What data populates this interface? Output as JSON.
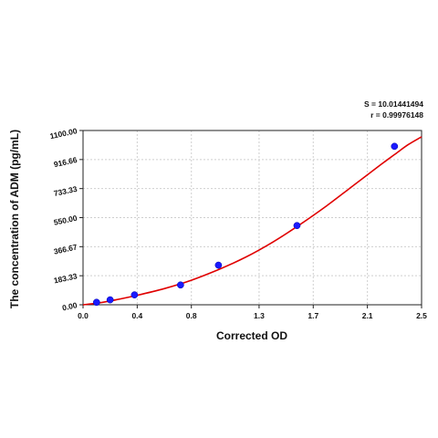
{
  "chart_data": {
    "type": "scatter",
    "title": "",
    "xlabel": "Corrected OD",
    "ylabel": "The concentration of ADM (pg/mL)",
    "xlim": [
      0,
      2.5
    ],
    "ylim": [
      0,
      1100
    ],
    "x_ticks": [
      0.0,
      0.4,
      0.8,
      1.3,
      1.7,
      2.1,
      2.5
    ],
    "x_tick_labels": [
      "0.0",
      "0.4",
      "0.8",
      "1.3",
      "1.7",
      "2.1",
      "2.5"
    ],
    "y_ticks": [
      0,
      183.33,
      366.67,
      550,
      733.33,
      916.66,
      1100
    ],
    "y_tick_labels": [
      "0.00",
      "183.33",
      "366.67",
      "550.00",
      "733.33",
      "916.66",
      "1100.00"
    ],
    "grid": true,
    "stats": {
      "s_label": "S = 10.01441494",
      "r_label": "r = 0.99976148"
    },
    "series": [
      {
        "points": [
          {
            "x": 0.1,
            "y": 15.6
          },
          {
            "x": 0.2,
            "y": 31.2
          },
          {
            "x": 0.38,
            "y": 62.5
          },
          {
            "x": 0.72,
            "y": 125
          },
          {
            "x": 1.0,
            "y": 250
          },
          {
            "x": 1.58,
            "y": 500
          },
          {
            "x": 2.3,
            "y": 1000
          }
        ],
        "color": "#1a1aff"
      }
    ],
    "fit_curve": {
      "color": "#e00000",
      "points": [
        {
          "x": 0.0,
          "y": 0
        },
        {
          "x": 0.1,
          "y": 10
        },
        {
          "x": 0.2,
          "y": 24
        },
        {
          "x": 0.4,
          "y": 60
        },
        {
          "x": 0.6,
          "y": 102
        },
        {
          "x": 0.8,
          "y": 155
        },
        {
          "x": 1.0,
          "y": 222
        },
        {
          "x": 1.2,
          "y": 300
        },
        {
          "x": 1.4,
          "y": 395
        },
        {
          "x": 1.6,
          "y": 505
        },
        {
          "x": 1.8,
          "y": 625
        },
        {
          "x": 2.0,
          "y": 755
        },
        {
          "x": 2.2,
          "y": 885
        },
        {
          "x": 2.3,
          "y": 948
        },
        {
          "x": 2.4,
          "y": 1010
        },
        {
          "x": 2.5,
          "y": 1060
        }
      ]
    }
  }
}
